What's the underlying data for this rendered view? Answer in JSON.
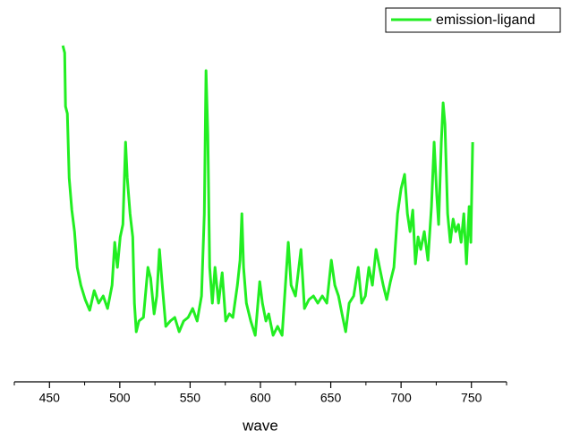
{
  "chart_data": {
    "type": "line",
    "x_label": "wave",
    "xlim": [
      425,
      775
    ],
    "xticks": [
      450,
      500,
      550,
      600,
      650,
      700,
      750
    ],
    "xticks_minor": [
      425,
      475,
      525,
      575,
      625,
      675,
      725,
      775
    ],
    "ylim": [
      0,
      100
    ],
    "legend": "top-right",
    "series": [
      {
        "name": "emission-ligand",
        "color": "#22ee22",
        "x": [
          459.5,
          460.8,
          461.4,
          462.7,
          464.0,
          465.9,
          467.8,
          469.7,
          472.3,
          475.4,
          478.6,
          481.8,
          485.0,
          488.2,
          491.3,
          494.5,
          496.4,
          498.3,
          500.3,
          502.2,
          504.1,
          505.3,
          507.3,
          509.2,
          510.4,
          511.7,
          513.6,
          516.8,
          520.0,
          521.9,
          524.4,
          526.3,
          528.2,
          530.2,
          532.7,
          535.9,
          539.1,
          542.2,
          545.4,
          548.6,
          551.8,
          555.0,
          558.1,
          560.1,
          561.3,
          562.6,
          563.9,
          565.8,
          567.7,
          570.2,
          572.8,
          575.3,
          577.9,
          580.4,
          583.6,
          585.5,
          586.8,
          588.0,
          590.0,
          593.1,
          596.3,
          599.5,
          601.4,
          603.9,
          605.9,
          609.0,
          612.2,
          615.4,
          618.6,
          619.8,
          621.8,
          624.9,
          628.8,
          631.3,
          634.5,
          637.7,
          640.8,
          644.0,
          647.2,
          650.4,
          652.9,
          655.5,
          658.0,
          660.6,
          663.1,
          666.3,
          669.5,
          672.0,
          674.6,
          677.1,
          679.6,
          682.2,
          684.7,
          687.3,
          689.8,
          692.4,
          694.9,
          697.5,
          700.0,
          702.5,
          704.5,
          706.4,
          708.3,
          710.2,
          712.1,
          714.0,
          716.5,
          719.1,
          721.6,
          723.5,
          725.4,
          726.7,
          728.6,
          729.9,
          731.2,
          733.1,
          735.0,
          737.0,
          738.9,
          740.8,
          742.7,
          744.6,
          746.5,
          748.4,
          749.6,
          750.9
        ],
        "values": [
          94,
          92,
          77,
          75,
          57,
          48,
          42,
          32,
          27,
          23,
          20,
          25.5,
          22,
          24,
          20.5,
          27,
          39,
          32,
          40.5,
          44,
          67,
          57,
          47,
          40.5,
          22,
          14,
          17,
          18,
          32,
          29,
          19,
          24,
          37,
          27,
          15.5,
          17,
          18,
          14,
          17,
          18,
          20.5,
          17,
          24,
          47,
          87,
          69,
          32,
          22,
          32,
          22,
          30.5,
          17,
          19,
          18,
          27,
          34,
          47,
          32,
          22,
          17,
          13,
          28,
          22,
          17,
          19,
          13,
          15.5,
          13,
          32,
          39,
          27,
          24,
          37,
          20.5,
          23,
          24,
          22,
          24,
          22,
          34,
          27,
          24,
          19,
          14,
          22,
          24,
          32,
          22,
          24,
          32,
          27,
          37,
          32,
          27,
          23,
          28,
          32,
          47,
          54,
          58,
          47,
          42,
          48,
          33,
          40.5,
          37,
          42,
          34,
          49,
          67,
          52,
          44,
          67,
          78,
          72,
          47,
          39,
          45.5,
          42,
          44,
          39,
          47,
          33,
          49,
          39,
          67
        ]
      }
    ]
  }
}
